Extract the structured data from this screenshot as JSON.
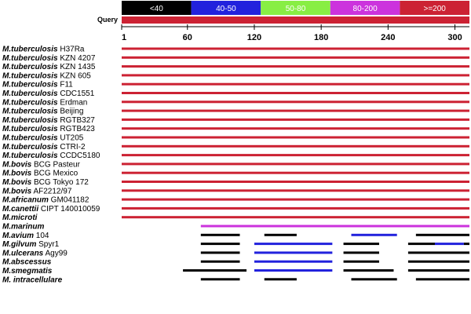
{
  "legend": [
    {
      "label": "<40",
      "color": "#000000",
      "text_color": "#ffffff"
    },
    {
      "label": "40-50",
      "color": "#2222dd",
      "text_color": "#ffffff"
    },
    {
      "label": "50-80",
      "color": "#88ee44",
      "text_color": "#ffffff"
    },
    {
      "label": "80-200",
      "color": "#cc33dd",
      "text_color": "#ffffff"
    },
    {
      "label": ">=200",
      "color": "#cc2233",
      "text_color": "#ffffff"
    }
  ],
  "query_label": "Query",
  "axis": {
    "min": 1,
    "max": 313,
    "ticks": [
      1,
      60,
      120,
      180,
      240,
      300
    ]
  },
  "colors": {
    "red": "#cc2233",
    "magenta": "#cc33dd",
    "blue": "#2222dd",
    "black": "#000000"
  },
  "rows": [
    {
      "species": "M.tuberculosis",
      "strain": "H37Ra",
      "segments": [
        {
          "start": 1,
          "end": 313,
          "color": "red"
        }
      ]
    },
    {
      "species": "M.tuberculosis",
      "strain": "KZN 4207",
      "segments": [
        {
          "start": 1,
          "end": 313,
          "color": "red"
        }
      ]
    },
    {
      "species": "M.tuberculosis",
      "strain": "KZN 1435",
      "segments": [
        {
          "start": 1,
          "end": 313,
          "color": "red"
        }
      ]
    },
    {
      "species": "M.tuberculosis",
      "strain": "KZN 605",
      "segments": [
        {
          "start": 1,
          "end": 313,
          "color": "red"
        }
      ]
    },
    {
      "species": "M.tuberculosis",
      "strain": "F11",
      "segments": [
        {
          "start": 1,
          "end": 313,
          "color": "red"
        }
      ]
    },
    {
      "species": "M.tuberculosis",
      "strain": "CDC1551",
      "segments": [
        {
          "start": 1,
          "end": 313,
          "color": "red"
        }
      ]
    },
    {
      "species": "M.tuberculosis",
      "strain": "Erdman",
      "segments": [
        {
          "start": 1,
          "end": 313,
          "color": "red"
        }
      ]
    },
    {
      "species": "M.tuberculosis",
      "strain": "Beijing",
      "segments": [
        {
          "start": 1,
          "end": 313,
          "color": "red"
        }
      ]
    },
    {
      "species": "M.tuberculosis",
      "strain": "RGTB327",
      "segments": [
        {
          "start": 1,
          "end": 313,
          "color": "red"
        }
      ]
    },
    {
      "species": "M.tuberculosis",
      "strain": "RGTB423",
      "segments": [
        {
          "start": 1,
          "end": 313,
          "color": "red"
        }
      ]
    },
    {
      "species": "M.tuberculosis",
      "strain": "UT205",
      "segments": [
        {
          "start": 1,
          "end": 313,
          "color": "red"
        }
      ]
    },
    {
      "species": "M.tuberculosis",
      "strain": "CTRI-2",
      "segments": [
        {
          "start": 1,
          "end": 313,
          "color": "red"
        }
      ]
    },
    {
      "species": "M.tuberculosis",
      "strain": "CCDC5180",
      "segments": [
        {
          "start": 1,
          "end": 313,
          "color": "red"
        }
      ]
    },
    {
      "species": "M.bovis",
      "strain": "BCG Pasteur",
      "segments": [
        {
          "start": 1,
          "end": 313,
          "color": "red"
        }
      ]
    },
    {
      "species": "M.bovis",
      "strain": "BCG Mexico",
      "segments": [
        {
          "start": 1,
          "end": 313,
          "color": "red"
        }
      ]
    },
    {
      "species": "M.bovis",
      "strain": "BCG Tokyo 172",
      "segments": [
        {
          "start": 1,
          "end": 313,
          "color": "red"
        }
      ]
    },
    {
      "species": "M.bovis",
      "strain": "AF2212/97",
      "segments": [
        {
          "start": 1,
          "end": 313,
          "color": "red"
        }
      ]
    },
    {
      "species": "M.africanum",
      "strain": "GM041182",
      "segments": [
        {
          "start": 1,
          "end": 313,
          "color": "red"
        }
      ]
    },
    {
      "species": "M.canettii",
      "strain": "CIPT 140010059",
      "segments": [
        {
          "start": 1,
          "end": 313,
          "color": "red"
        }
      ]
    },
    {
      "species": "M.microti",
      "strain": "",
      "segments": [
        {
          "start": 1,
          "end": 313,
          "color": "red"
        }
      ]
    },
    {
      "species": "M.marinum",
      "strain": "",
      "segments": [
        {
          "start": 72,
          "end": 313,
          "color": "magenta"
        }
      ]
    },
    {
      "species": "M.avium",
      "strain": "104",
      "segments": [
        {
          "start": 72,
          "end": 107,
          "color": "black"
        },
        {
          "start": 129,
          "end": 158,
          "color": "black"
        },
        {
          "start": 207,
          "end": 248,
          "color": "blue"
        },
        {
          "start": 265,
          "end": 318,
          "color": "black"
        }
      ]
    },
    {
      "species": "M.gilvum",
      "strain": "Spyr1",
      "segments": [
        {
          "start": 72,
          "end": 107,
          "color": "black"
        },
        {
          "start": 120,
          "end": 190,
          "color": "blue"
        },
        {
          "start": 200,
          "end": 232,
          "color": "black"
        },
        {
          "start": 258,
          "end": 282,
          "color": "black"
        },
        {
          "start": 282,
          "end": 308,
          "color": "blue"
        },
        {
          "start": 308,
          "end": 320,
          "color": "black"
        }
      ]
    },
    {
      "species": "M.ulcerans",
      "strain": "Agy99",
      "segments": [
        {
          "start": 72,
          "end": 107,
          "color": "black"
        },
        {
          "start": 120,
          "end": 190,
          "color": "blue"
        },
        {
          "start": 200,
          "end": 232,
          "color": "black"
        },
        {
          "start": 258,
          "end": 320,
          "color": "black"
        }
      ]
    },
    {
      "species": "M.abscessus",
      "strain": "",
      "segments": [
        {
          "start": 72,
          "end": 107,
          "color": "black"
        },
        {
          "start": 120,
          "end": 190,
          "color": "blue"
        },
        {
          "start": 200,
          "end": 232,
          "color": "black"
        },
        {
          "start": 258,
          "end": 320,
          "color": "black"
        }
      ]
    },
    {
      "species": "M.smegmatis",
      "strain": "",
      "segments": [
        {
          "start": 56,
          "end": 113,
          "color": "black"
        },
        {
          "start": 120,
          "end": 190,
          "color": "blue"
        },
        {
          "start": 200,
          "end": 245,
          "color": "black"
        },
        {
          "start": 258,
          "end": 320,
          "color": "black"
        }
      ]
    },
    {
      "species": "M. intracellulare",
      "strain": "",
      "segments": [
        {
          "start": 72,
          "end": 107,
          "color": "black"
        },
        {
          "start": 129,
          "end": 158,
          "color": "black"
        },
        {
          "start": 207,
          "end": 248,
          "color": "black"
        },
        {
          "start": 265,
          "end": 318,
          "color": "black"
        }
      ]
    }
  ]
}
